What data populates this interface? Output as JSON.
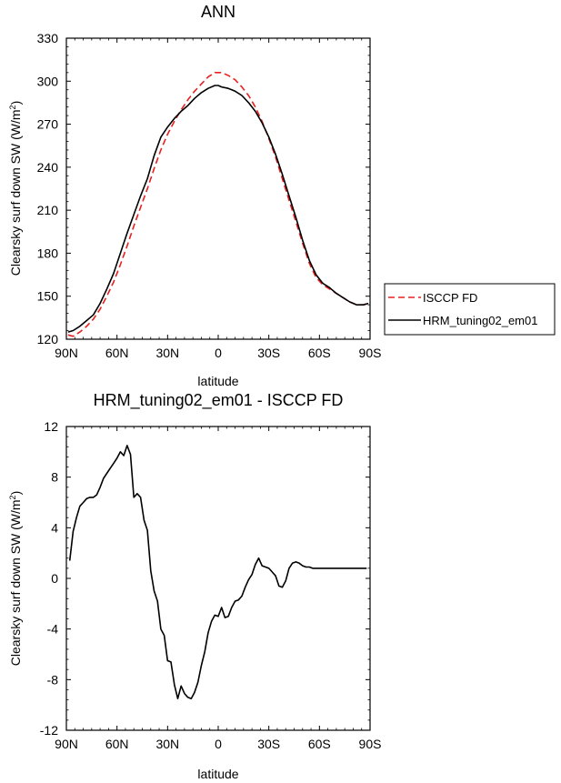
{
  "chart_data": [
    {
      "type": "line",
      "title": "ANN",
      "xlabel": "latitude",
      "ylabel": "Clearsky surf down SW (W/m²)",
      "ylabel_parts": {
        "base": "Clearsky surf down SW (W/m",
        "sup": "2",
        "tail": ")"
      },
      "xlim": [
        -90,
        90
      ],
      "ylim": [
        120,
        330
      ],
      "xticks": [
        -90,
        -60,
        -30,
        0,
        30,
        60,
        90
      ],
      "xtick_labels": [
        "90N",
        "60N",
        "30N",
        "0",
        "30S",
        "60S",
        "90S"
      ],
      "yticks": [
        120,
        150,
        180,
        210,
        240,
        270,
        300,
        330
      ],
      "ytick_labels": [
        "120",
        "150",
        "180",
        "210",
        "240",
        "270",
        "300",
        "330"
      ],
      "legend_position": "right",
      "series": [
        {
          "name": "ISCCP FD",
          "color": "#e8201f",
          "dash": true,
          "x": [
            -89,
            -86,
            -82,
            -78,
            -74,
            -70,
            -66,
            -62,
            -58,
            -54,
            -50,
            -46,
            -42,
            -38,
            -34,
            -30,
            -26,
            -22,
            -18,
            -14,
            -10,
            -6,
            -2,
            0,
            2,
            6,
            10,
            14,
            18,
            22,
            26,
            30,
            34,
            38,
            42,
            46,
            50,
            54,
            58,
            62,
            66,
            70,
            74,
            78,
            82,
            86,
            89
          ],
          "y": [
            123,
            122,
            125,
            129,
            134,
            141,
            150,
            160,
            172,
            185,
            199,
            212,
            225,
            239,
            252,
            263,
            272,
            280,
            287,
            293,
            298,
            303,
            306,
            306,
            306,
            304,
            301,
            296,
            290,
            282,
            272,
            260,
            247,
            232,
            217,
            202,
            187,
            173,
            163,
            158,
            155,
            152,
            149,
            146,
            144,
            144,
            145
          ]
        },
        {
          "name": "HRM_tuning02_em01",
          "color": "#000000",
          "dash": false,
          "x": [
            -89,
            -86,
            -82,
            -78,
            -74,
            -70,
            -66,
            -62,
            -58,
            -54,
            -50,
            -46,
            -42,
            -38,
            -34,
            -30,
            -26,
            -22,
            -18,
            -14,
            -10,
            -6,
            -2,
            0,
            2,
            6,
            10,
            14,
            18,
            22,
            26,
            30,
            34,
            38,
            42,
            46,
            50,
            54,
            58,
            62,
            66,
            70,
            74,
            78,
            82,
            86,
            89
          ],
          "y": [
            125,
            126,
            129,
            133,
            137,
            145,
            155,
            166,
            180,
            194,
            207,
            220,
            232,
            248,
            261,
            268,
            274,
            279,
            283,
            288,
            292,
            295,
            297,
            297,
            296,
            295,
            293,
            290,
            285,
            279,
            271,
            261,
            249,
            235,
            220,
            205,
            189,
            175,
            165,
            159,
            156,
            152,
            149,
            146,
            144,
            144,
            145
          ]
        }
      ]
    },
    {
      "type": "line",
      "title": "HRM_tuning02_em01 - ISCCP FD",
      "xlabel": "latitude",
      "ylabel": "Clearsky surf down SW (W/m²)",
      "ylabel_parts": {
        "base": "Clearsky surf down SW (W/m",
        "sup": "2",
        "tail": ")"
      },
      "xlim": [
        -90,
        90
      ],
      "ylim": [
        -12,
        12
      ],
      "xticks": [
        -90,
        -60,
        -30,
        0,
        30,
        60,
        90
      ],
      "xtick_labels": [
        "90N",
        "60N",
        "30N",
        "0",
        "30S",
        "60S",
        "90S"
      ],
      "yticks": [
        -12,
        -8,
        -4,
        0,
        4,
        8,
        12
      ],
      "ytick_labels": [
        "-12",
        "-8",
        "-4",
        "0",
        "4",
        "8",
        "12"
      ],
      "series": [
        {
          "name": "HRM_tuning02_em01 - ISCCP FD",
          "color": "#000000",
          "dash": false,
          "x": [
            -88,
            -86,
            -84,
            -82,
            -80,
            -78,
            -76,
            -74,
            -72,
            -70,
            -68,
            -66,
            -64,
            -62,
            -60,
            -58,
            -56,
            -54,
            -52,
            -50,
            -48,
            -46,
            -44,
            -42,
            -40,
            -38,
            -36,
            -34,
            -32,
            -30,
            -28,
            -26,
            -24,
            -22,
            -20,
            -18,
            -16,
            -14,
            -12,
            -10,
            -8,
            -6,
            -4,
            -2,
            0,
            2,
            4,
            6,
            8,
            10,
            12,
            14,
            16,
            18,
            20,
            22,
            24,
            26,
            28,
            30,
            32,
            34,
            36,
            38,
            40,
            42,
            44,
            46,
            48,
            50,
            52,
            54,
            56,
            58,
            60,
            62,
            64,
            66,
            68,
            70,
            72,
            74,
            76,
            78,
            80,
            82,
            84,
            86,
            88
          ],
          "y": [
            1.4,
            3.7,
            4.8,
            5.7,
            6.0,
            6.3,
            6.4,
            6.4,
            6.6,
            7.2,
            7.9,
            8.3,
            8.7,
            9.1,
            9.5,
            10.0,
            9.7,
            10.5,
            9.8,
            6.4,
            6.7,
            6.4,
            4.6,
            3.8,
            0.6,
            -1.0,
            -1.8,
            -4.0,
            -4.5,
            -6.5,
            -6.6,
            -8.4,
            -9.5,
            -8.5,
            -9.1,
            -9.4,
            -9.5,
            -9.0,
            -8.2,
            -6.9,
            -5.8,
            -4.3,
            -3.4,
            -2.9,
            -3.0,
            -2.3,
            -3.1,
            -3.0,
            -2.3,
            -1.8,
            -1.7,
            -1.4,
            -0.7,
            -0.1,
            0.3,
            1.1,
            1.6,
            1.0,
            0.9,
            0.8,
            0.5,
            0.2,
            -0.6,
            -0.7,
            -0.2,
            0.8,
            1.2,
            1.3,
            1.2,
            1.0,
            0.9,
            0.9,
            0.8,
            0.8,
            0.8,
            0.8,
            0.8,
            0.8,
            0.8,
            0.8,
            0.8,
            0.8,
            0.8,
            0.8,
            0.8,
            0.8,
            0.8,
            0.8,
            0.8
          ]
        }
      ]
    }
  ]
}
